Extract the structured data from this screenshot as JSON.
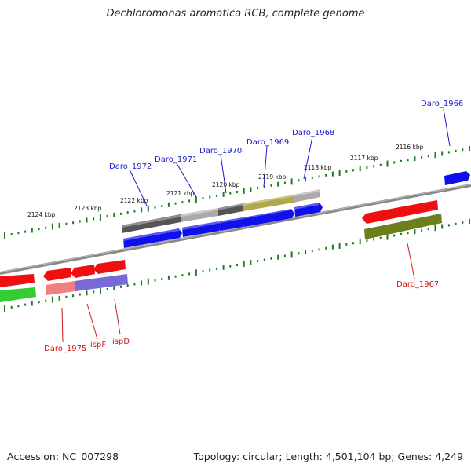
{
  "title": "Dechloromonas aromatica RCB, complete genome",
  "footer": {
    "accession": "Accession: NC_007298",
    "summary": "Topology: circular; Length: 4,501,104 bp; Genes: 4,249"
  },
  "colors": {
    "forward_gene": "#1010ee",
    "reverse_gene": "#ee1010",
    "forward_label": "#1a1acc",
    "reverse_label": "#cc1a1a",
    "ruler_tick": "#1e7a1e",
    "backbone": "#888888",
    "operon_dark": "#555555",
    "operon_light": "#aaaaaa",
    "operon_olive": "#b0a84a",
    "reverse_olive": "#6b7f1c",
    "reverse_lavender": "#7a6ad8",
    "reverse_pink": "#f08080",
    "reverse_green": "#33cc33"
  },
  "upper_ruler": {
    "labels": [
      "2124 kbp",
      "2123 kbp",
      "2122 kbp",
      "2121 kbp",
      "2120 kbp",
      "2119 kbp",
      "2118 kbp",
      "2117 kbp",
      "2116 kbp"
    ]
  },
  "genes_forward": [
    "Daro_1966",
    "Daro_1968",
    "Daro_1969",
    "Daro_1970",
    "Daro_1971",
    "Daro_1972"
  ],
  "genes_reverse": [
    "Daro_1967",
    "Daro_1975",
    "ispF",
    "ispD"
  ]
}
